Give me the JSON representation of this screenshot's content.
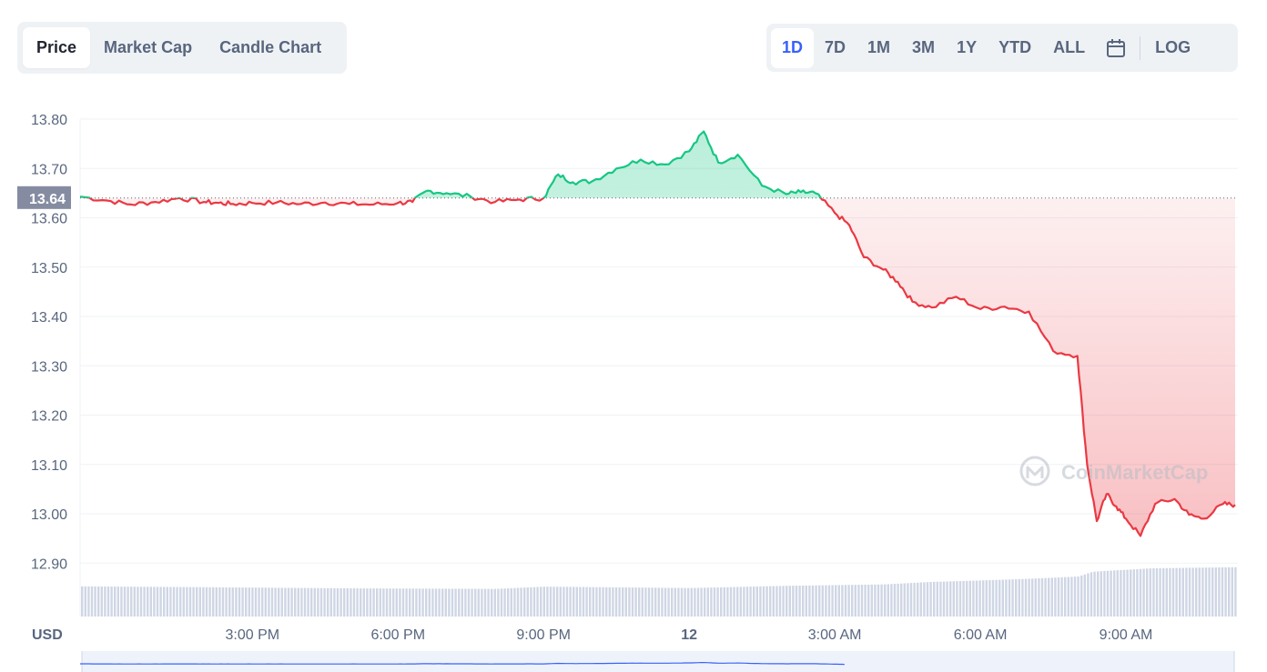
{
  "tabs": [
    {
      "label": "Price",
      "active": true
    },
    {
      "label": "Market Cap",
      "active": false
    },
    {
      "label": "Candle Chart",
      "active": false
    }
  ],
  "ranges": [
    "1D",
    "7D",
    "1M",
    "3M",
    "1Y",
    "YTD",
    "ALL"
  ],
  "active_range": "1D",
  "log_label": "LOG",
  "currency_label": "USD",
  "watermark": "CoinMarketCap",
  "colors": {
    "up": "#16c784",
    "down": "#ea3943",
    "grid": "#eff2f5",
    "volume": "#cfd6e4",
    "accent": "#3861fb"
  },
  "chart_data": {
    "type": "line",
    "baseline_price": 13.64,
    "baseline_label": "13.64",
    "ylim": [
      12.8,
      13.8
    ],
    "y_ticks": [
      "13.80",
      "13.70",
      "13.60",
      "13.50",
      "13.40",
      "13.30",
      "13.20",
      "13.10",
      "13.00",
      "12.90"
    ],
    "x_tick_labels": [
      "3:00 PM",
      "6:00 PM",
      "9:00 PM",
      "12",
      "3:00 AM",
      "6:00 AM",
      "9:00 AM"
    ],
    "x_tick_hours": [
      15,
      18,
      21,
      24,
      27,
      30,
      33
    ],
    "x_range_hours": [
      11.45,
      35.25
    ],
    "series": [
      {
        "hours": [
          11.45,
          12.0,
          12.5,
          13.0,
          13.5,
          14.0,
          14.3,
          14.6,
          15.0,
          15.5,
          16.0,
          16.5,
          17.0,
          17.5,
          18.0,
          18.3,
          18.6,
          19.0,
          19.5,
          20.0,
          20.5,
          21.0,
          21.3,
          21.6,
          22.0,
          22.5,
          23.0,
          23.5,
          24.0,
          24.3,
          24.6,
          25.0,
          25.5,
          26.0,
          26.3,
          26.6,
          27.0,
          27.3,
          27.6,
          28.0,
          28.3,
          28.6,
          29.0,
          29.5,
          30.0,
          30.5,
          31.0,
          31.5,
          32.0,
          32.2,
          32.4,
          32.6,
          32.8,
          33.0,
          33.3,
          33.6,
          34.0,
          34.3,
          34.6,
          35.0,
          35.25
        ],
        "values": [
          13.643,
          13.635,
          13.627,
          13.632,
          13.64,
          13.632,
          13.63,
          13.628,
          13.63,
          13.631,
          13.628,
          13.631,
          13.628,
          13.627,
          13.63,
          13.632,
          13.655,
          13.65,
          13.643,
          13.632,
          13.637,
          13.64,
          13.688,
          13.672,
          13.674,
          13.7,
          13.718,
          13.708,
          13.735,
          13.775,
          13.712,
          13.728,
          13.665,
          13.648,
          13.652,
          13.65,
          13.61,
          13.585,
          13.52,
          13.495,
          13.47,
          13.43,
          13.418,
          13.44,
          13.415,
          13.42,
          13.41,
          13.33,
          13.32,
          13.1,
          12.985,
          13.04,
          13.015,
          12.99,
          12.955,
          13.02,
          13.03,
          12.998,
          12.99,
          13.02,
          13.018
        ]
      }
    ],
    "volume": {
      "hours": [
        11.45,
        14.0,
        17.0,
        20.0,
        21.0,
        24.0,
        26.0,
        28.0,
        29.0,
        30.0,
        31.0,
        32.0,
        32.3,
        33.0,
        33.5,
        35.25
      ],
      "values": [
        0.107,
        0.104,
        0.1,
        0.098,
        0.106,
        0.101,
        0.109,
        0.114,
        0.123,
        0.128,
        0.134,
        0.142,
        0.159,
        0.166,
        0.171,
        0.175
      ]
    }
  }
}
